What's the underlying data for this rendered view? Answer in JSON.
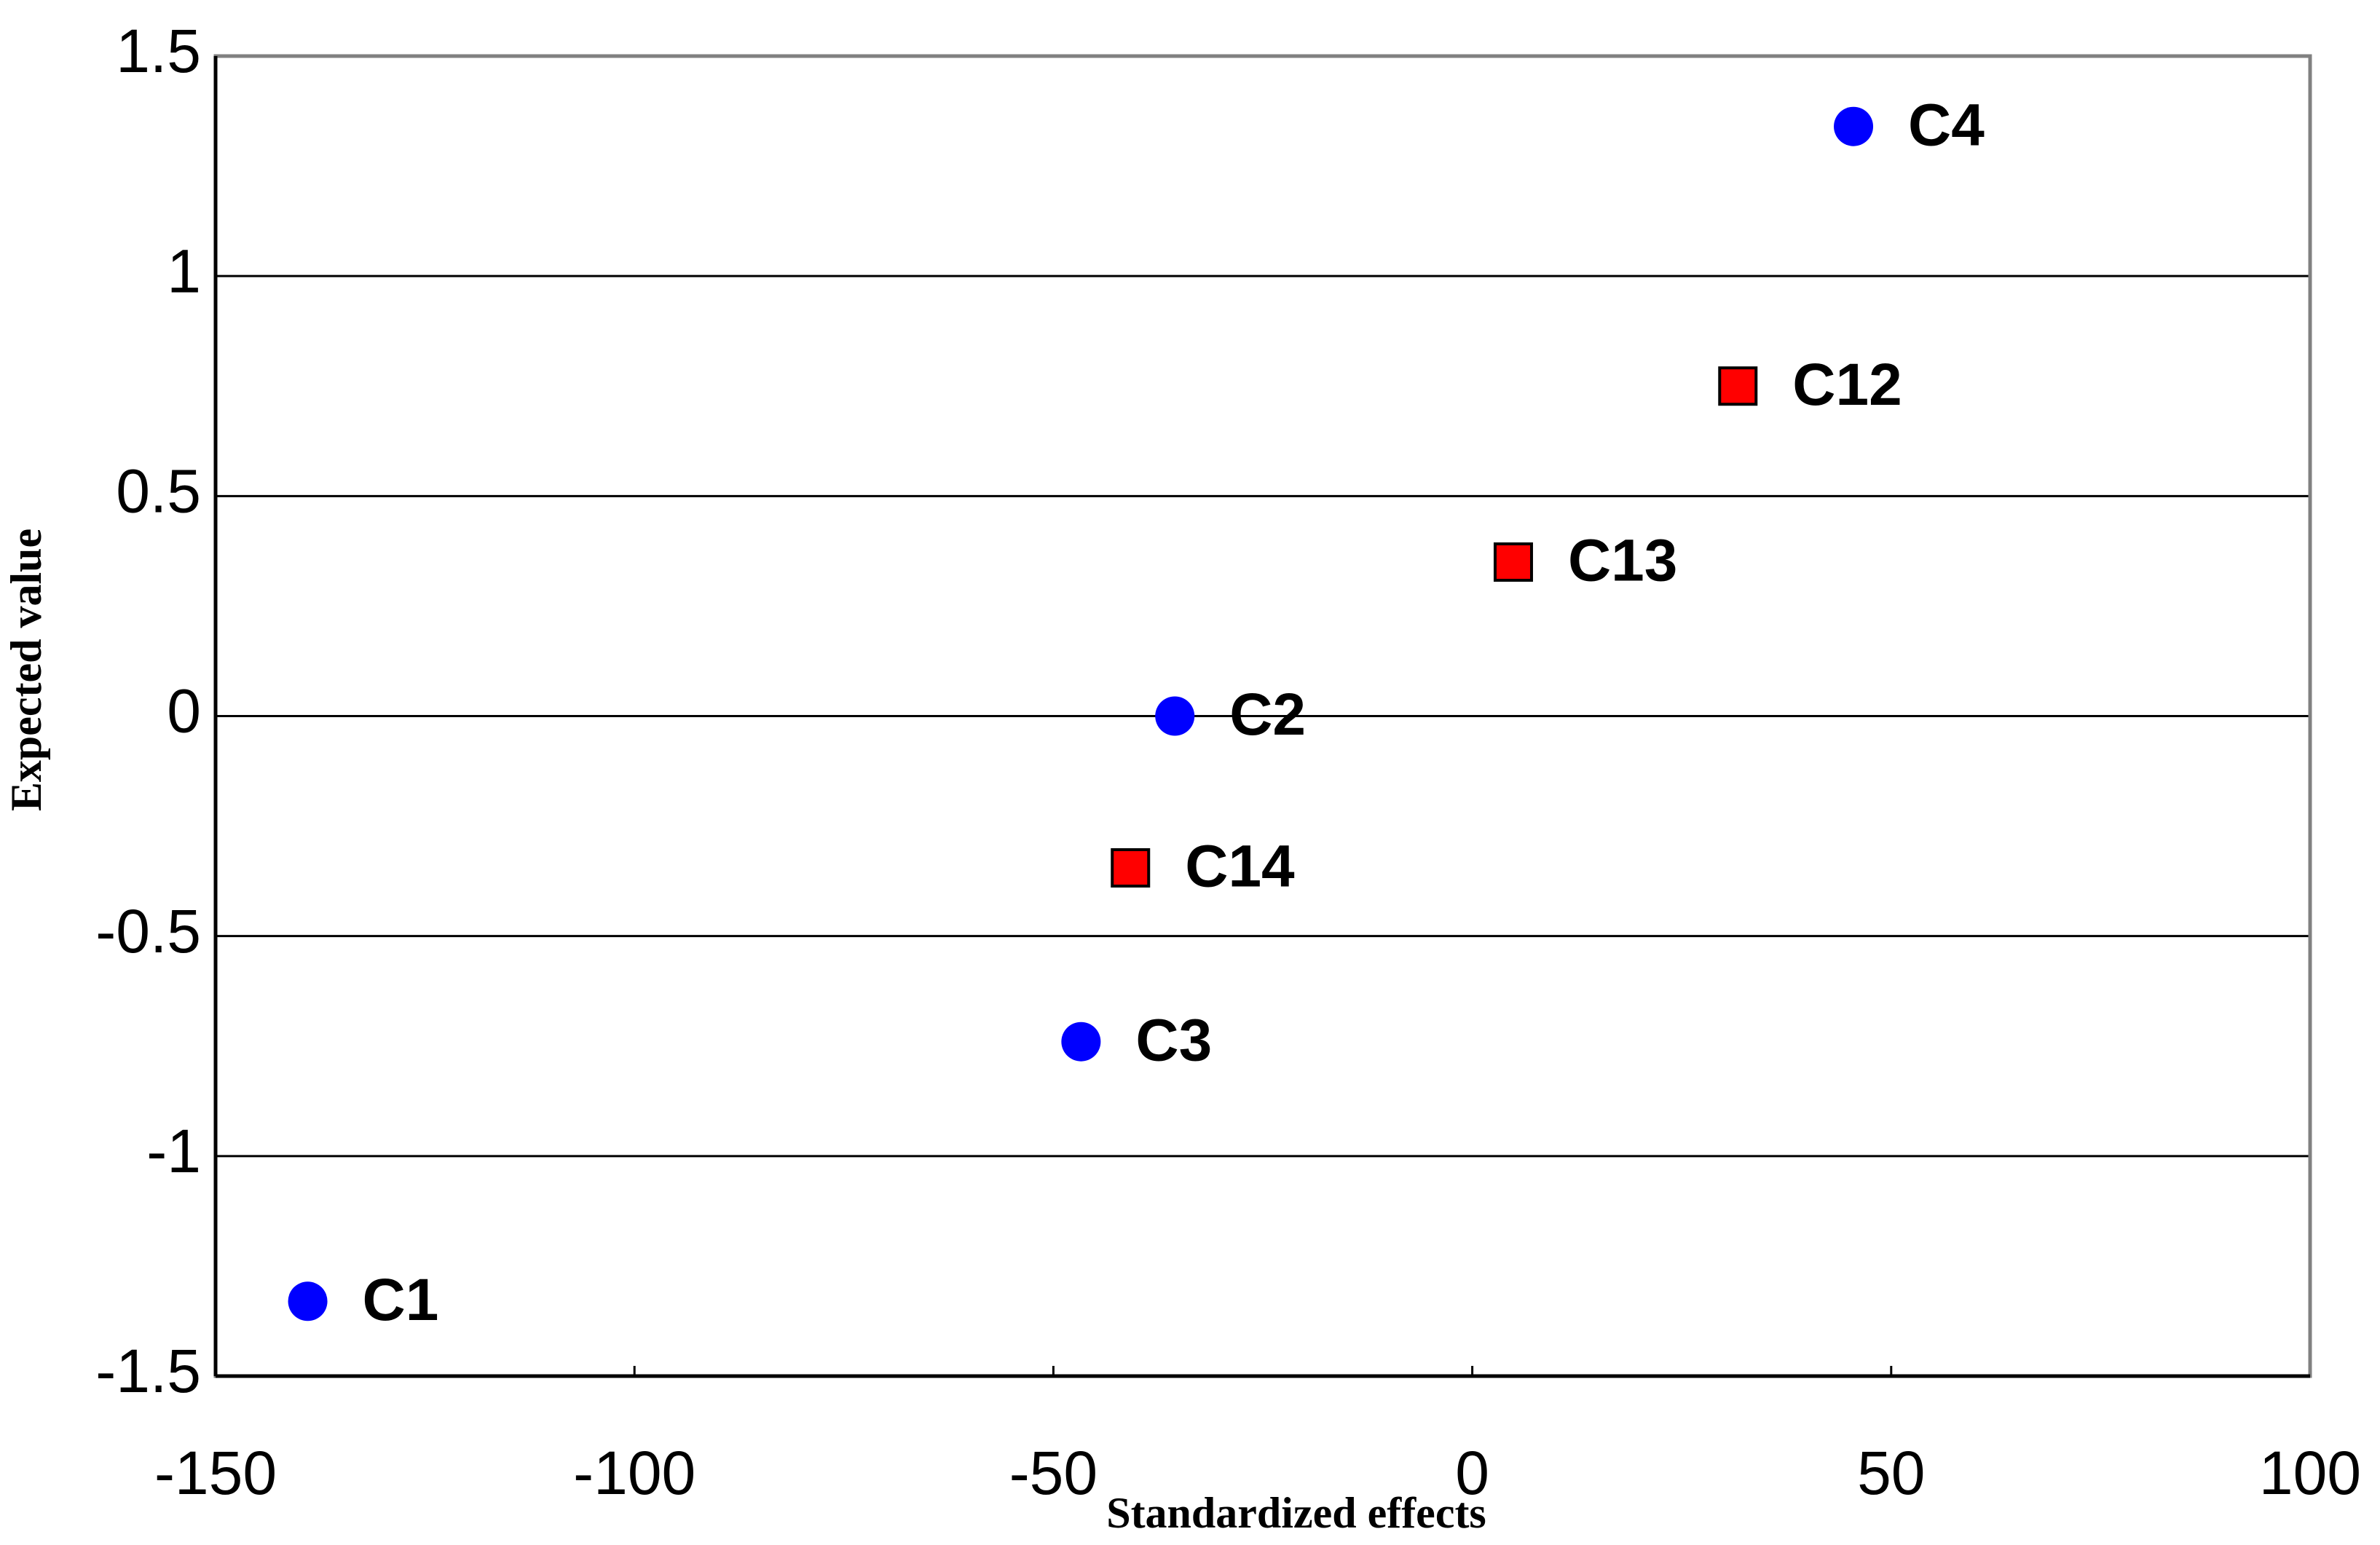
{
  "chart_data": {
    "type": "scatter",
    "x_label": "Standardized effects",
    "y_label": "Expected value",
    "xlim": [
      -150,
      100
    ],
    "xticks": [
      -150,
      -100,
      -50,
      0,
      50,
      100
    ],
    "ylim": [
      -1.5,
      1.5
    ],
    "yticks": [
      -1.5,
      -1,
      -0.5,
      0,
      0.5,
      1,
      1.5
    ],
    "grid": true,
    "series": [
      {
        "color": "#0000ff",
        "marker": "circle",
        "labels": [
          "C1",
          "C2",
          "C3",
          "C4"
        ],
        "x": [
          -139,
          -35.5,
          -46.7,
          45.5
        ],
        "values": [
          -1.33,
          0,
          -0.74,
          1.34
        ]
      },
      {
        "color": "#ff0000",
        "marker": "square",
        "labels": [
          "C12",
          "C13",
          "C14"
        ],
        "x": [
          31.7,
          4.9,
          -40.8
        ],
        "values": [
          0.75,
          0.35,
          -0.345
        ]
      }
    ]
  }
}
